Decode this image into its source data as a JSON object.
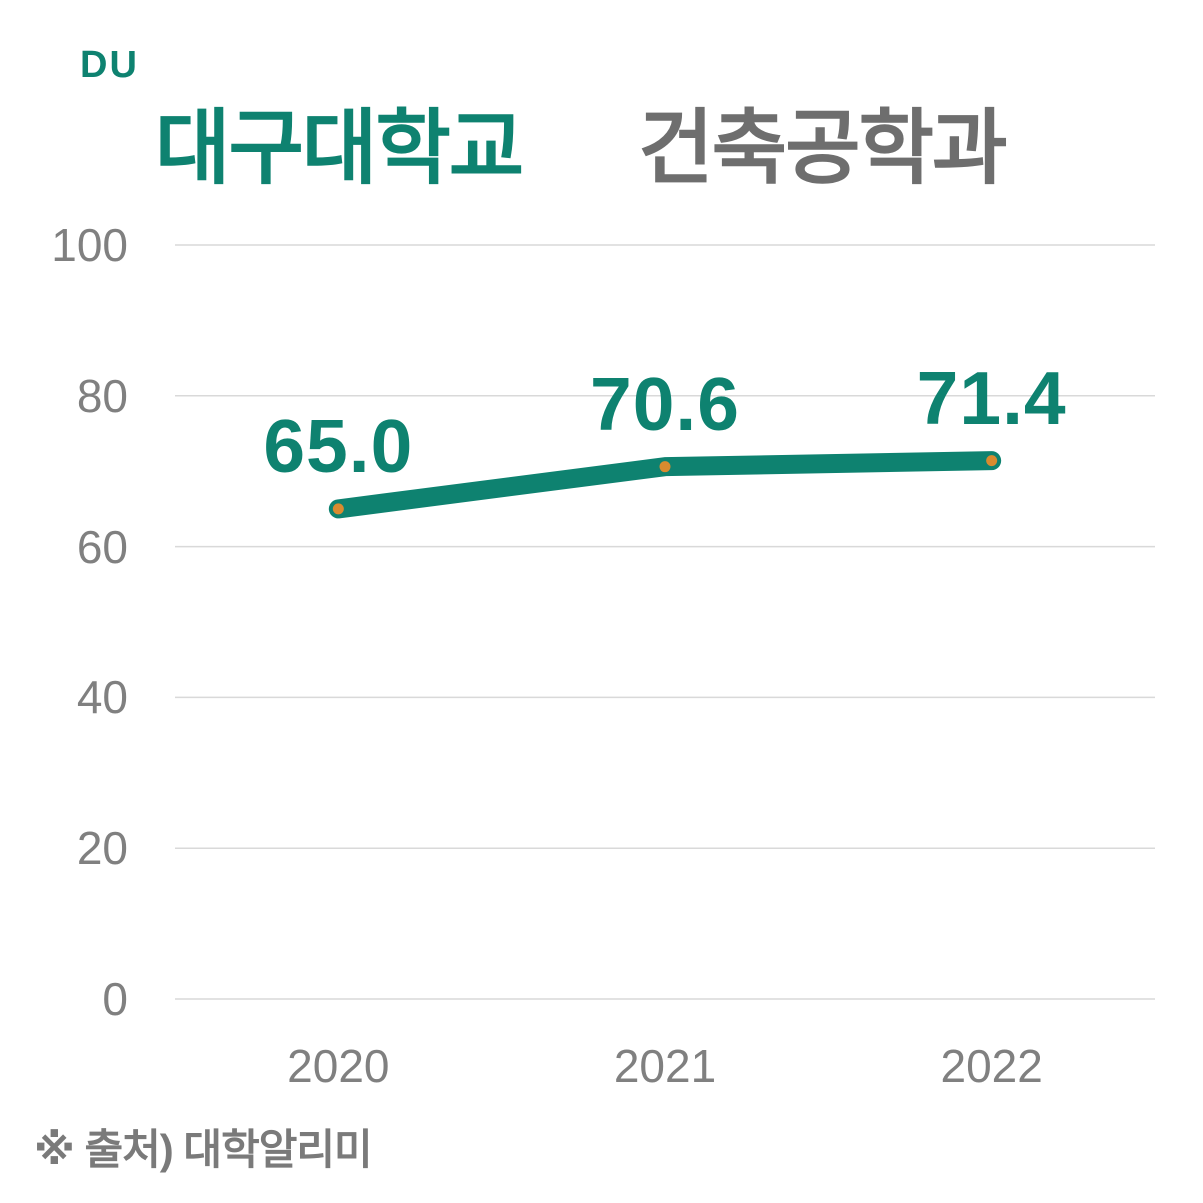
{
  "logo": {
    "text": "DU",
    "color": "#0E8270"
  },
  "header": {
    "university": "대구대학교",
    "department": "건축공학과",
    "university_color": "#0E8270",
    "department_color": "#6E6E6E"
  },
  "chart_data": {
    "type": "line",
    "title": "대구대학교 건축공학과",
    "categories": [
      "2020",
      "2021",
      "2022"
    ],
    "series": [
      {
        "name": "대구대학교 건축공학과",
        "values": [
          65.0,
          70.6,
          71.4
        ]
      }
    ],
    "data_labels": [
      "65.0",
      "70.6",
      "71.4"
    ],
    "yticks": [
      0,
      20,
      40,
      60,
      80,
      100
    ],
    "ylim": [
      0,
      100
    ],
    "xlabel": "",
    "ylabel": "",
    "grid": true,
    "legend": "none",
    "line_color": "#0E8270",
    "marker_color": "#D98B2F",
    "gridline_color": "#D9D9D9",
    "axis_label_color": "#808080"
  },
  "footer": {
    "source": "※ 출처) 대학알리미"
  }
}
